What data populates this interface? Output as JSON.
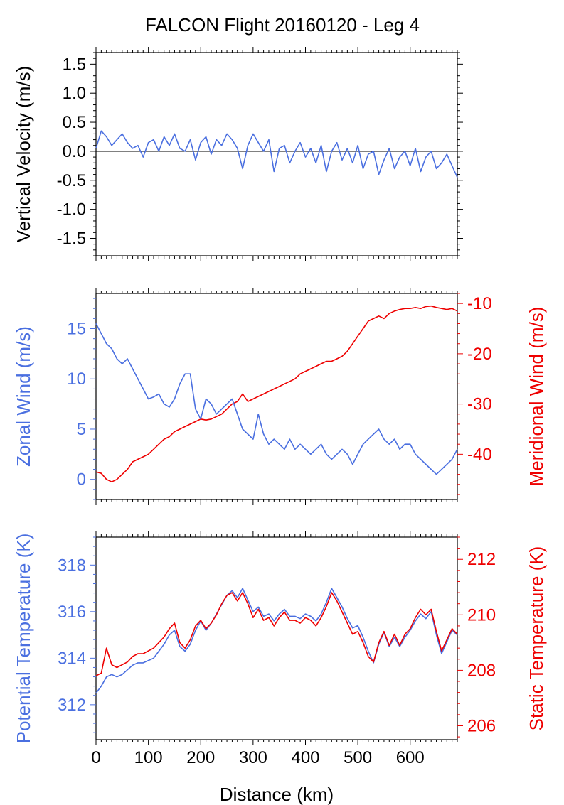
{
  "title": "FALCON Flight 20160120 - Leg 4",
  "colors": {
    "blue": "#4a6fe0",
    "red": "#ee0000",
    "axis": "#000000"
  },
  "chart_data": [
    {
      "type": "line",
      "panel": "vertical-velocity",
      "xlabel": "",
      "xlim": [
        0,
        690
      ],
      "ylabel": "Vertical Velocity (m/s)",
      "ylim": [
        -1.8,
        1.7
      ],
      "yticks": [
        "1.5",
        "1.0",
        "0.5",
        "0.0",
        "-0.5",
        "-1.0",
        "-1.5"
      ],
      "zero_line": true,
      "series": [
        {
          "color": "#4a6fe0",
          "x": [
            0,
            10,
            20,
            30,
            40,
            50,
            60,
            70,
            80,
            90,
            100,
            110,
            120,
            130,
            140,
            150,
            160,
            170,
            180,
            190,
            200,
            210,
            220,
            230,
            240,
            250,
            260,
            270,
            280,
            290,
            300,
            310,
            320,
            330,
            340,
            350,
            360,
            370,
            380,
            390,
            400,
            410,
            420,
            430,
            440,
            450,
            460,
            470,
            480,
            490,
            500,
            510,
            520,
            530,
            540,
            550,
            560,
            570,
            580,
            590,
            600,
            610,
            620,
            630,
            640,
            650,
            660,
            670,
            680,
            690
          ],
          "y": [
            0.05,
            0.35,
            0.25,
            0.1,
            0.2,
            0.3,
            0.15,
            0.05,
            0.1,
            -0.1,
            0.15,
            0.2,
            0.0,
            0.25,
            0.1,
            0.3,
            0.05,
            0.0,
            0.2,
            -0.15,
            0.15,
            0.25,
            -0.05,
            0.2,
            0.1,
            0.3,
            0.2,
            0.05,
            -0.3,
            0.1,
            0.3,
            0.15,
            0.0,
            0.2,
            -0.35,
            0.05,
            0.1,
            -0.2,
            0.0,
            0.15,
            -0.1,
            0.05,
            -0.2,
            0.1,
            -0.35,
            0.0,
            0.15,
            -0.15,
            0.05,
            -0.2,
            0.1,
            -0.3,
            -0.05,
            0.0,
            -0.4,
            -0.15,
            0.05,
            -0.3,
            -0.1,
            0.0,
            -0.25,
            0.05,
            -0.35,
            -0.1,
            0.0,
            -0.3,
            -0.2,
            -0.05,
            -0.25,
            -0.45
          ]
        }
      ]
    },
    {
      "type": "line",
      "panel": "wind",
      "xlabel": "",
      "xlim": [
        0,
        690
      ],
      "ylabel_left": "Zonal Wind (m/s)",
      "ylim_left": [
        -2,
        18.5
      ],
      "yticks_left": [
        "15",
        "10",
        "5",
        "0"
      ],
      "ylabel_right": "Meridional Wind (m/s)",
      "ylim_right": [
        -49,
        -8
      ],
      "yticks_right": [
        "-10",
        "-20",
        "-30",
        "-40"
      ],
      "series": [
        {
          "axis": "left",
          "color": "#4a6fe0",
          "x": [
            0,
            10,
            20,
            30,
            40,
            50,
            60,
            70,
            80,
            90,
            100,
            110,
            120,
            130,
            140,
            150,
            160,
            170,
            180,
            190,
            200,
            210,
            220,
            230,
            240,
            250,
            260,
            270,
            280,
            290,
            300,
            310,
            320,
            330,
            340,
            350,
            360,
            370,
            380,
            390,
            400,
            410,
            420,
            430,
            440,
            450,
            460,
            470,
            480,
            490,
            500,
            510,
            520,
            530,
            540,
            550,
            560,
            570,
            580,
            590,
            600,
            610,
            620,
            630,
            640,
            650,
            660,
            670,
            680,
            690
          ],
          "y": [
            15.5,
            14.5,
            13.5,
            13.0,
            12.0,
            11.5,
            12.0,
            11.0,
            10.0,
            9.0,
            8.0,
            8.2,
            8.5,
            7.5,
            7.2,
            8.0,
            9.5,
            10.5,
            10.5,
            7.0,
            6.0,
            8.0,
            7.5,
            6.5,
            7.0,
            7.5,
            8.0,
            6.5,
            5.0,
            4.5,
            4.0,
            6.5,
            4.5,
            3.5,
            4.0,
            3.5,
            3.0,
            4.0,
            3.0,
            3.5,
            3.0,
            2.5,
            3.0,
            3.5,
            2.5,
            2.0,
            2.5,
            3.0,
            2.5,
            1.5,
            2.5,
            3.5,
            4.0,
            4.5,
            5.0,
            4.0,
            3.5,
            4.0,
            3.0,
            3.5,
            3.5,
            2.5,
            2.0,
            1.5,
            1.0,
            0.5,
            1.0,
            1.5,
            2.0,
            3.0
          ]
        },
        {
          "axis": "right",
          "color": "#ee0000",
          "x": [
            0,
            10,
            20,
            30,
            40,
            50,
            60,
            70,
            80,
            90,
            100,
            110,
            120,
            130,
            140,
            150,
            160,
            170,
            180,
            190,
            200,
            210,
            220,
            230,
            240,
            250,
            260,
            270,
            280,
            290,
            300,
            310,
            320,
            330,
            340,
            350,
            360,
            370,
            380,
            390,
            400,
            410,
            420,
            430,
            440,
            450,
            460,
            470,
            480,
            490,
            500,
            510,
            520,
            530,
            540,
            550,
            560,
            570,
            580,
            590,
            600,
            610,
            620,
            630,
            640,
            650,
            660,
            670,
            680,
            690
          ],
          "y": [
            -43.5,
            -43.8,
            -45.0,
            -45.5,
            -45.0,
            -44.0,
            -43.0,
            -41.5,
            -41.0,
            -40.5,
            -40.0,
            -39.0,
            -38.0,
            -37.0,
            -36.5,
            -35.5,
            -35.0,
            -34.5,
            -34.0,
            -33.5,
            -33.0,
            -33.2,
            -33.0,
            -32.5,
            -32.0,
            -31.0,
            -30.0,
            -29.5,
            -28.0,
            -29.5,
            -29.0,
            -28.5,
            -28.0,
            -27.5,
            -27.0,
            -26.5,
            -26.0,
            -25.5,
            -25.0,
            -24.0,
            -23.5,
            -23.0,
            -22.5,
            -22.0,
            -21.5,
            -21.5,
            -21.0,
            -20.5,
            -19.5,
            -18.0,
            -16.5,
            -15.0,
            -13.5,
            -13.0,
            -12.5,
            -13.0,
            -12.0,
            -11.5,
            -11.2,
            -11.0,
            -11.0,
            -10.8,
            -11.0,
            -10.6,
            -10.5,
            -10.8,
            -11.0,
            -11.2,
            -11.0,
            -11.5
          ]
        }
      ]
    },
    {
      "type": "line",
      "panel": "temperature",
      "xlabel": "Distance (km)",
      "xlim": [
        0,
        690
      ],
      "xticks": [
        "0",
        "100",
        "200",
        "300",
        "400",
        "500",
        "600"
      ],
      "ylabel_left": "Potential Temperature (K)",
      "ylim_left": [
        310.5,
        319.2
      ],
      "yticks_left": [
        "318",
        "316",
        "314",
        "312"
      ],
      "ylabel_right": "Static Temperature (K)",
      "ylim_right": [
        205.5,
        212.8
      ],
      "yticks_right": [
        "212",
        "210",
        "208",
        "206"
      ],
      "series": [
        {
          "axis": "left",
          "color": "#4a6fe0",
          "x": [
            0,
            10,
            20,
            30,
            40,
            50,
            60,
            70,
            80,
            90,
            100,
            110,
            120,
            130,
            140,
            150,
            160,
            170,
            180,
            190,
            200,
            210,
            220,
            230,
            240,
            250,
            260,
            270,
            280,
            290,
            300,
            310,
            320,
            330,
            340,
            350,
            360,
            370,
            380,
            390,
            400,
            410,
            420,
            430,
            440,
            450,
            460,
            470,
            480,
            490,
            500,
            510,
            520,
            530,
            540,
            550,
            560,
            570,
            580,
            590,
            600,
            610,
            620,
            630,
            640,
            650,
            660,
            670,
            680,
            690
          ],
          "y": [
            312.5,
            312.8,
            313.2,
            313.3,
            313.2,
            313.3,
            313.5,
            313.7,
            313.8,
            313.8,
            313.9,
            314.0,
            314.3,
            314.6,
            315.0,
            315.2,
            314.5,
            314.3,
            314.6,
            315.2,
            315.6,
            315.2,
            315.5,
            315.9,
            316.3,
            316.7,
            316.9,
            316.6,
            317.0,
            316.5,
            316.0,
            316.2,
            315.8,
            315.9,
            315.6,
            315.9,
            316.1,
            315.8,
            315.8,
            315.7,
            315.9,
            315.8,
            315.6,
            315.9,
            316.4,
            317.0,
            316.6,
            316.2,
            315.7,
            315.3,
            315.4,
            314.9,
            314.3,
            313.8,
            314.6,
            315.1,
            314.5,
            314.9,
            314.5,
            314.9,
            315.2,
            315.6,
            315.9,
            315.7,
            316.0,
            315.0,
            314.2,
            314.7,
            315.2,
            315.0
          ]
        },
        {
          "axis": "right",
          "color": "#ee0000",
          "x": [
            0,
            10,
            20,
            30,
            40,
            50,
            60,
            70,
            80,
            90,
            100,
            110,
            120,
            130,
            140,
            150,
            160,
            170,
            180,
            190,
            200,
            210,
            220,
            230,
            240,
            250,
            260,
            270,
            280,
            290,
            300,
            310,
            320,
            330,
            340,
            350,
            360,
            370,
            380,
            390,
            400,
            410,
            420,
            430,
            440,
            450,
            460,
            470,
            480,
            490,
            500,
            510,
            520,
            530,
            540,
            550,
            560,
            570,
            580,
            590,
            600,
            610,
            620,
            630,
            640,
            650,
            660,
            670,
            680,
            690
          ],
          "y": [
            207.8,
            207.9,
            208.8,
            208.2,
            208.1,
            208.2,
            208.3,
            208.5,
            208.6,
            208.6,
            208.7,
            208.8,
            209.0,
            209.2,
            209.5,
            209.7,
            209.0,
            208.8,
            209.1,
            209.6,
            209.8,
            209.5,
            209.7,
            210.0,
            210.4,
            210.7,
            210.8,
            210.5,
            210.8,
            210.4,
            209.9,
            210.2,
            209.8,
            209.9,
            209.6,
            209.9,
            210.1,
            209.8,
            209.8,
            209.7,
            209.9,
            209.8,
            209.6,
            209.9,
            210.3,
            210.8,
            210.5,
            210.1,
            209.7,
            209.3,
            209.4,
            209.0,
            208.5,
            208.3,
            209.0,
            209.4,
            208.9,
            209.3,
            208.9,
            209.3,
            209.5,
            209.9,
            210.2,
            210.0,
            210.2,
            209.4,
            208.7,
            209.1,
            209.5,
            209.3
          ]
        }
      ]
    }
  ]
}
